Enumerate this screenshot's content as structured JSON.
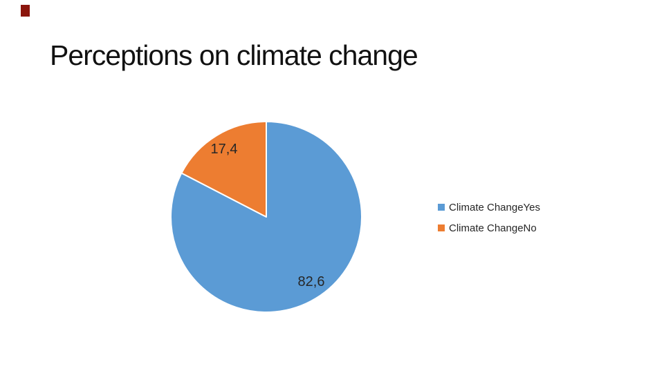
{
  "title": {
    "text": "Perceptions on climate change",
    "color": "#111111"
  },
  "decor": {
    "red_mark_color": "#8B150C"
  },
  "chart_data": {
    "type": "pie",
    "title": "Perceptions on climate change",
    "categories": [
      "Climate ChangeYes",
      "Climate ChangeNo"
    ],
    "values": [
      82.6,
      17.4
    ],
    "value_labels": [
      "82,6",
      "17,4"
    ],
    "colors": [
      "#5B9BD5",
      "#ED7D31"
    ],
    "slice_border_color": "#FFFFFF",
    "start_angle_deg": 0,
    "direction": "clockwise",
    "legend_position": "right",
    "data_label_position": "inside",
    "data_label_color": "#262626",
    "legend_text_color": "#262626",
    "background": "#FFFFFF"
  }
}
